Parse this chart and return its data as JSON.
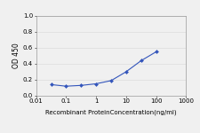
{
  "x": [
    0.032,
    0.1,
    0.32,
    1.0,
    3.2,
    10.0,
    32.0,
    100.0
  ],
  "y": [
    0.14,
    0.12,
    0.13,
    0.15,
    0.19,
    0.3,
    0.44,
    0.55
  ],
  "line_color": "#3355bb",
  "marker": "D",
  "marker_size": 2.0,
  "xlabel": "Recombinant ProteinConcentration(ng/ml)",
  "ylabel": "OD 450",
  "xlim": [
    0.01,
    1000
  ],
  "ylim": [
    0,
    1
  ],
  "yticks": [
    0,
    0.2,
    0.4,
    0.6,
    0.8,
    1
  ],
  "xticks": [
    0.01,
    0.1,
    1,
    10,
    100,
    1000
  ],
  "background_color": "#f0f0f0",
  "grid_color": "#dddddd",
  "xlabel_fontsize": 5.0,
  "ylabel_fontsize": 5.5,
  "tick_fontsize": 5.0,
  "linewidth": 0.8
}
